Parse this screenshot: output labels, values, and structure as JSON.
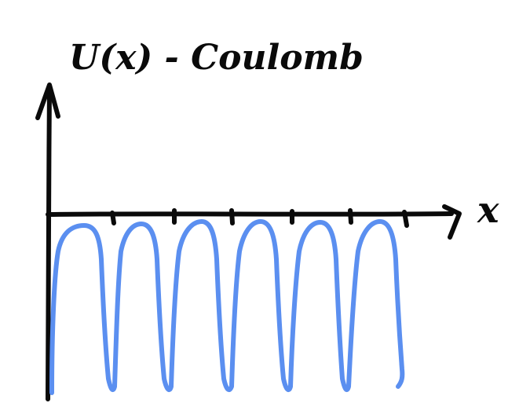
{
  "diagram": {
    "title": "U(x) - Coulomb",
    "x_axis_label": "x",
    "colors": {
      "ink": "#0a0a0a",
      "curve": "#5b8ff0",
      "background": "#ffffff"
    },
    "wells": 6
  }
}
